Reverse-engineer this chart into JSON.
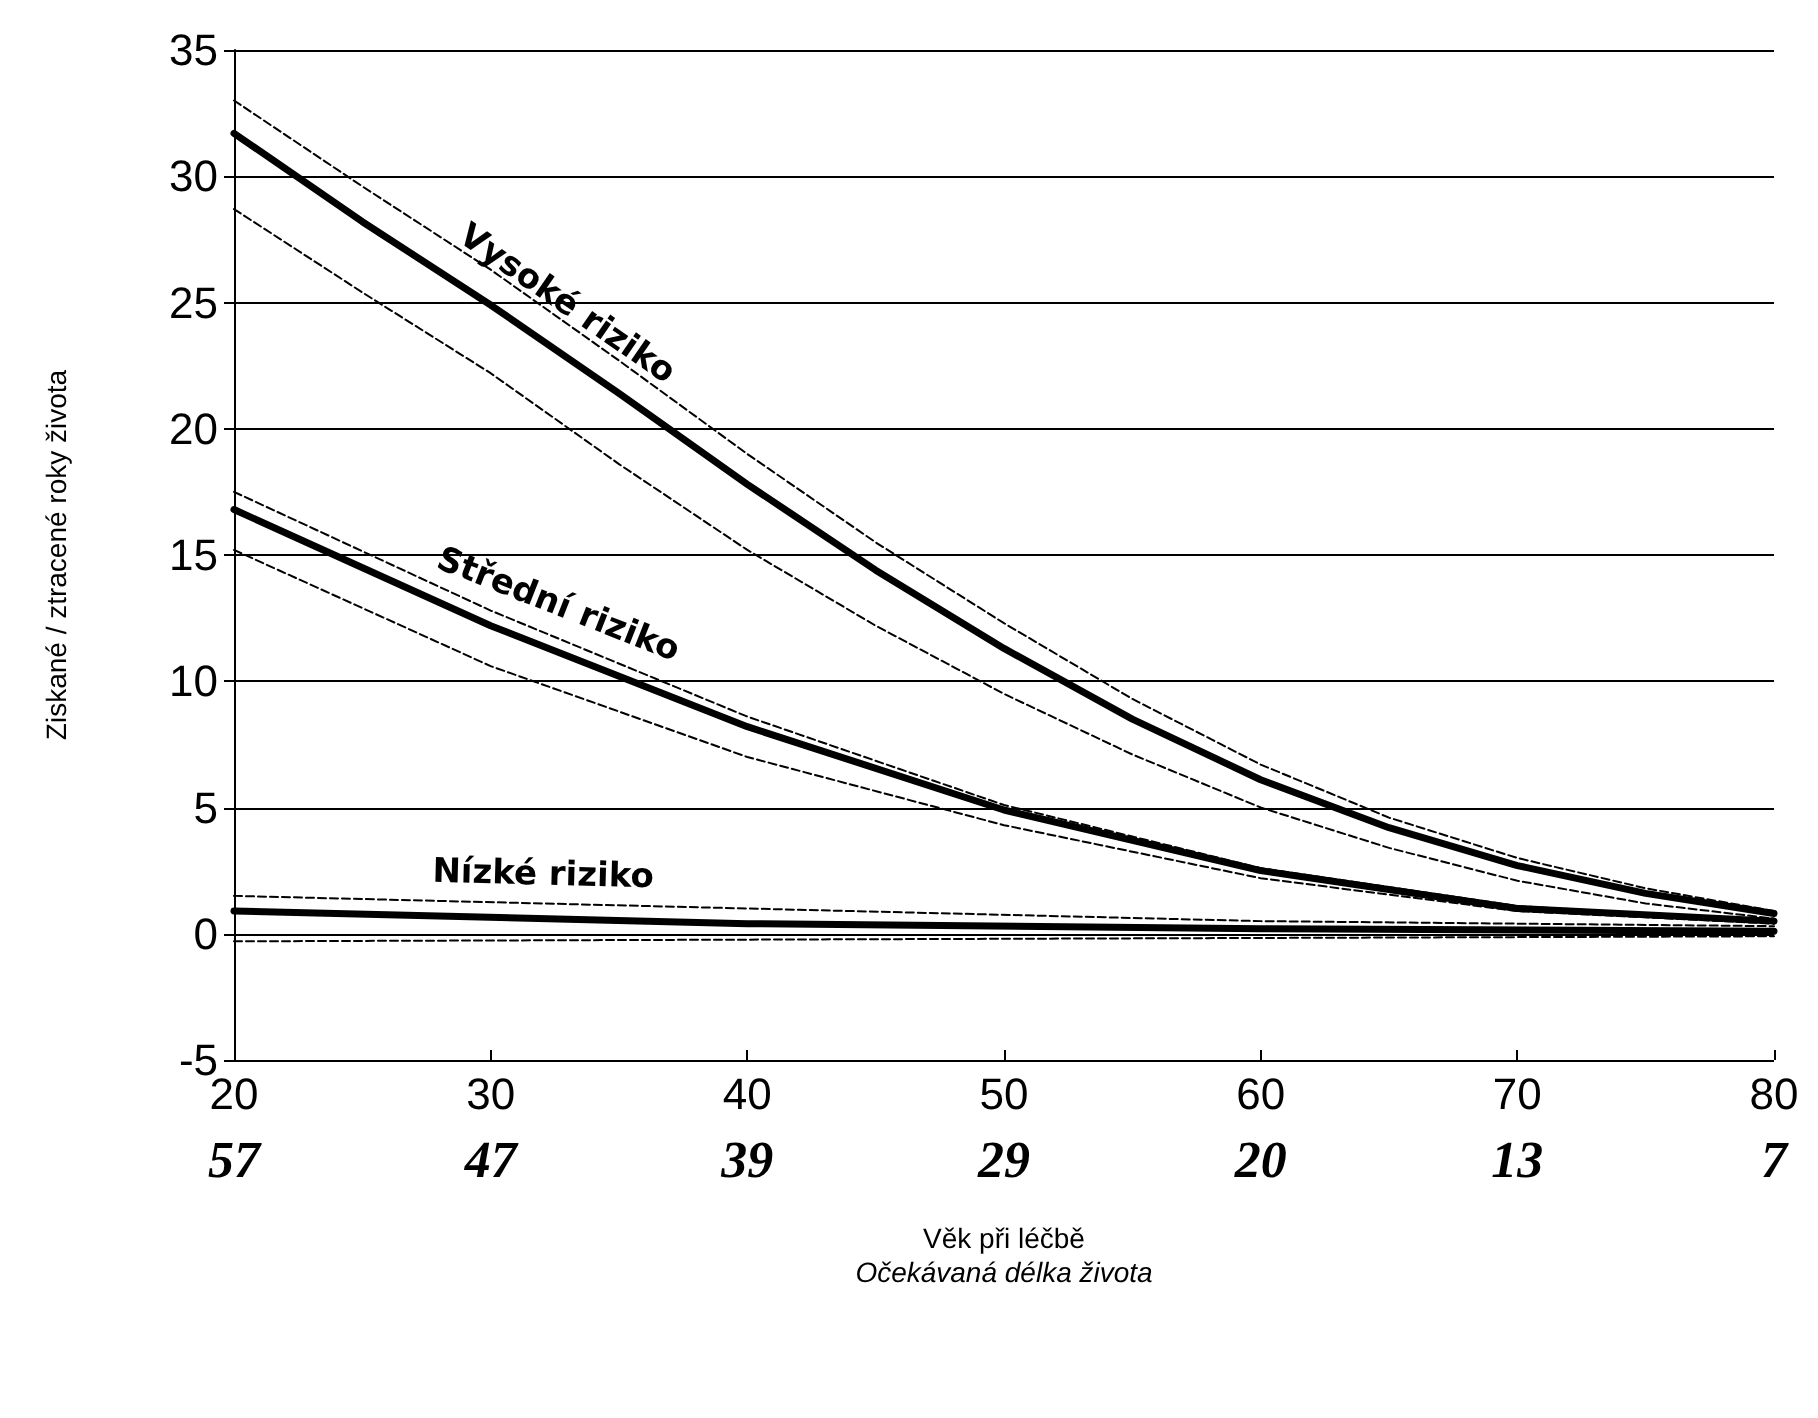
{
  "chart_data": {
    "type": "line",
    "ylabel": "Ziskané / ztracené roky života",
    "xlabel": "Věk při léčbě",
    "xlim": [
      20,
      80
    ],
    "xticks": [
      20,
      30,
      40,
      50,
      60,
      70,
      80
    ],
    "ylim": [
      -5,
      35
    ],
    "yticks": [
      -5,
      0,
      5,
      10,
      15,
      20,
      25,
      30,
      35
    ],
    "grid": "y",
    "legend": false,
    "marker": "none",
    "series": [
      {
        "name": "Vysoké riziko",
        "color": "#000000",
        "line_style": "solid",
        "x": [
          20,
          25,
          30,
          35,
          40,
          45,
          50,
          55,
          60,
          65,
          70,
          75,
          80
        ],
        "values": [
          31.7,
          28.2,
          24.9,
          21.4,
          17.8,
          14.4,
          11.3,
          8.5,
          6.1,
          4.2,
          2.7,
          1.6,
          0.8
        ]
      },
      {
        "color": "#000000",
        "line_style": "dashed",
        "x": [
          20,
          25,
          30,
          35,
          40,
          45,
          50,
          55,
          60,
          65,
          70,
          75,
          80
        ],
        "values": [
          33,
          29.6,
          26.3,
          22.7,
          19,
          15.5,
          12.3,
          9.3,
          6.7,
          4.6,
          3.0,
          1.8,
          0.9
        ]
      },
      {
        "color": "#000000",
        "line_style": "dashed",
        "x": [
          20,
          25,
          30,
          35,
          40,
          45,
          50,
          55,
          60,
          65,
          70,
          75,
          80
        ],
        "values": [
          28.7,
          25.4,
          22.2,
          18.6,
          15.2,
          12.2,
          9.5,
          7.1,
          5.0,
          3.4,
          2.1,
          1.2,
          0.6
        ]
      },
      {
        "name": "Střední riziko",
        "color": "#000000",
        "line_style": "solid",
        "x": [
          20,
          30,
          40,
          50,
          60,
          70,
          80
        ],
        "values": [
          16.8,
          12.2,
          8.2,
          4.9,
          2.5,
          1.0,
          0.5
        ]
      },
      {
        "color": "#000000",
        "line_style": "dashed",
        "x": [
          20,
          30,
          40,
          50,
          60,
          70,
          80
        ],
        "values": [
          17.5,
          12.8,
          8.6,
          5.1,
          2.6,
          1.1,
          0.5
        ]
      },
      {
        "color": "#000000",
        "line_style": "dashed",
        "x": [
          20,
          30,
          40,
          50,
          60,
          70,
          80
        ],
        "values": [
          15.2,
          10.6,
          7.0,
          4.3,
          2.2,
          0.9,
          0.4
        ]
      },
      {
        "name": "Nízké riziko",
        "color": "#000000",
        "line_style": "solid",
        "x": [
          20,
          40,
          60,
          80
        ],
        "values": [
          0.9,
          0.4,
          0.2,
          0.1
        ]
      },
      {
        "color": "#000000",
        "line_style": "dashed",
        "x": [
          20,
          40,
          60,
          80
        ],
        "values": [
          1.5,
          1.0,
          0.5,
          0.3
        ]
      },
      {
        "color": "#000000",
        "line_style": "dashed",
        "x": [
          20,
          50,
          80
        ],
        "values": [
          -0.3,
          -0.2,
          -0.1
        ]
      }
    ],
    "annotations": [
      "57",
      "47",
      "39",
      "29",
      "20",
      "13",
      "7",
      "Očekávaná délka života"
    ]
  }
}
